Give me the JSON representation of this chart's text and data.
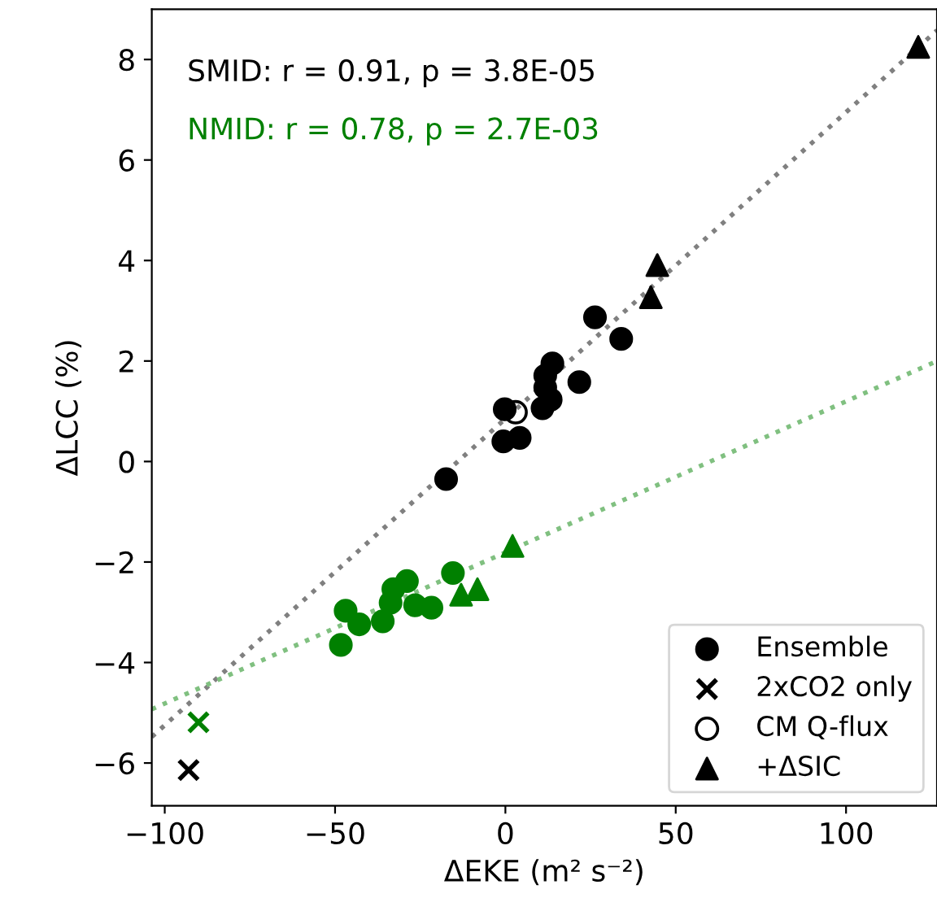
{
  "chart_data": {
    "type": "scatter",
    "xlabel": "ΔEKE (m² s⁻²)",
    "ylabel": "ΔLCC (%)",
    "xlim": [
      -103.8,
      126.7
    ],
    "ylim": [
      -6.85,
      9.0
    ],
    "xticks": [
      {
        "value": -100,
        "label": "−100"
      },
      {
        "value": -50,
        "label": "−50"
      },
      0,
      50,
      100
    ],
    "yticks": [
      {
        "value": -6,
        "label": "−6"
      },
      {
        "value": -4,
        "label": "−4"
      },
      {
        "value": -2,
        "label": "−2"
      },
      0,
      2,
      4,
      6,
      8
    ],
    "grid": false,
    "legend": "bottom right",
    "annotations": [
      "SMID: r = 0.91, p = 3.8E-05",
      "NMID: r = 0.78, p = 2.7E-03"
    ],
    "series": [
      {
        "type": "line",
        "color": "#808080",
        "line_style": "dotted",
        "marker": "none",
        "x": [
          -103.8,
          126.7
        ],
        "values": [
          -5.48,
          8.58
        ]
      },
      {
        "type": "line",
        "color": "#80c080",
        "line_style": "dotted",
        "marker": "none",
        "x": [
          -103.8,
          126.7
        ],
        "values": [
          -4.93,
          2.0
        ]
      },
      {
        "name": "Ensemble",
        "color": "#000000",
        "marker": "circle",
        "x": [
          -17.4,
          -0.6,
          4.2,
          -0.2,
          10.9,
          13.3,
          11.7,
          11.7,
          13.8,
          21.7,
          26.3,
          34.0
        ],
        "values": [
          -0.35,
          0.4,
          0.47,
          1.04,
          1.06,
          1.23,
          1.47,
          1.71,
          1.95,
          1.58,
          2.87,
          2.44
        ]
      },
      {
        "name": "2xCO2 only",
        "color": "#000000",
        "marker": "cross",
        "x": [
          -93.0
        ],
        "values": [
          -6.14
        ]
      },
      {
        "name": "CM Q-flux",
        "color": "#000000",
        "marker": "open circle",
        "x": [
          3.0
        ],
        "values": [
          0.98
        ]
      },
      {
        "name": "+ΔSIC",
        "color": "#000000",
        "marker": "triangle",
        "x": [
          42.7,
          44.6,
          121.2
        ],
        "values": [
          3.27,
          3.91,
          8.25
        ]
      },
      {
        "color": "#008000",
        "marker": "circle",
        "x": [
          -48.3,
          -46.9,
          -42.9,
          -36.0,
          -33.7,
          -32.9,
          -28.9,
          -26.5,
          -21.7,
          -15.4
        ],
        "values": [
          -3.65,
          -2.97,
          -3.24,
          -3.18,
          -2.81,
          -2.54,
          -2.38,
          -2.86,
          -2.91,
          -2.22
        ]
      },
      {
        "color": "#008000",
        "marker": "cross",
        "x": [
          -90.1
        ],
        "values": [
          -5.19
        ]
      },
      {
        "color": "#008000",
        "marker": "triangle",
        "x": [
          -13.0,
          -8.2,
          2.1
        ],
        "values": [
          -2.65,
          -2.54,
          -1.68
        ]
      }
    ]
  }
}
